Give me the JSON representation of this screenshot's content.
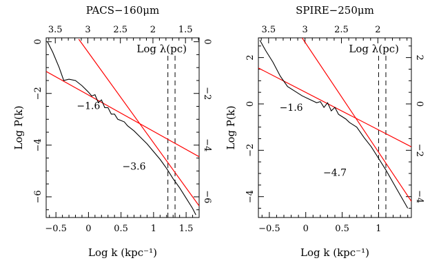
{
  "chart_data": [
    {
      "type": "line",
      "title": "PACS−160μm",
      "xlabel": "Log k (kpc⁻¹)",
      "ylabel": "Log P(k)",
      "top_label": "Log λ(pc)",
      "xlim": [
        -0.65,
        1.7
      ],
      "ylim": [
        -6.8,
        0.15
      ],
      "x_ticks": [
        -0.5,
        0,
        0.5,
        1,
        1.5
      ],
      "x_tick_labels": [
        "−0.5",
        "0",
        "0.5",
        "1",
        "1.5"
      ],
      "y_ticks": [
        0,
        -2,
        -4,
        -6
      ],
      "y_tick_labels": [
        "0",
        "−2",
        "−4",
        "−6"
      ],
      "top_ticks": [
        3.5,
        3,
        2.5,
        2,
        1.5
      ],
      "top_tick_labels": [
        "3.5",
        "3",
        "2.5",
        "2",
        "1.5"
      ],
      "top_axis_offset": 2.99,
      "grid": false,
      "series": [
        {
          "color": "#000000",
          "x": [
            -0.63,
            -0.55,
            -0.45,
            -0.38,
            -0.3,
            -0.2,
            -0.1,
            0.0,
            0.05,
            0.1,
            0.15,
            0.2,
            0.25,
            0.3,
            0.35,
            0.4,
            0.45,
            0.5,
            0.55,
            0.6,
            0.65,
            0.7,
            0.8,
            0.9,
            1.0,
            1.1,
            1.2,
            1.3,
            1.4,
            1.5,
            1.6,
            1.65
          ],
          "y": [
            0.0,
            -0.4,
            -1.0,
            -1.5,
            -1.45,
            -1.5,
            -1.7,
            -1.95,
            -2.1,
            -2.05,
            -2.35,
            -2.25,
            -2.55,
            -2.55,
            -2.8,
            -2.8,
            -3.0,
            -3.05,
            -3.1,
            -3.25,
            -3.35,
            -3.45,
            -3.7,
            -3.95,
            -4.25,
            -4.55,
            -4.9,
            -5.3,
            -5.65,
            -6.05,
            -6.45,
            -6.7
          ]
        }
      ],
      "fits": [
        {
          "slope": -1.6,
          "label": "−1.6",
          "color": "#ff0000",
          "x": [
            -0.65,
            1.7
          ],
          "y": [
            -1.15,
            -4.45
          ]
        },
        {
          "slope": -3.6,
          "label": "−3.6",
          "color": "#ff0000",
          "x": [
            -0.15,
            1.7
          ],
          "y": [
            0.1,
            -6.35
          ]
        }
      ],
      "vertical_lines": [
        1.22,
        1.33
      ],
      "slope_labels": [
        {
          "text": "−1.6",
          "x": 0.0,
          "y": -2.6
        },
        {
          "text": "−3.6",
          "x": 0.7,
          "y": -4.95
        }
      ]
    },
    {
      "type": "line",
      "title": "SPIRE−250μm",
      "xlabel": "Log k (kpc⁻¹)",
      "ylabel": "Log P(k)",
      "top_label": "Log λ(pc)",
      "xlim": [
        -0.65,
        1.45
      ],
      "ylim": [
        -4.9,
        2.85
      ],
      "x_ticks": [
        -0.5,
        0,
        0.5,
        1
      ],
      "x_tick_labels": [
        "−0.5",
        "0",
        "0.5",
        "1"
      ],
      "y_ticks": [
        2,
        0,
        -2,
        -4
      ],
      "y_tick_labels": [
        "2",
        "0",
        "−2",
        "−4"
      ],
      "top_ticks": [
        3.5,
        3,
        2.5,
        2
      ],
      "top_tick_labels": [
        "3.5",
        "3",
        "2.5",
        "2"
      ],
      "top_axis_offset": 2.99,
      "grid": false,
      "series": [
        {
          "color": "#000000",
          "x": [
            -0.63,
            -0.55,
            -0.45,
            -0.35,
            -0.25,
            -0.15,
            -0.05,
            0.05,
            0.15,
            0.2,
            0.25,
            0.3,
            0.35,
            0.4,
            0.45,
            0.5,
            0.55,
            0.6,
            0.65,
            0.7,
            0.8,
            0.9,
            1.0,
            1.1,
            1.2,
            1.3,
            1.4
          ],
          "y": [
            2.75,
            2.3,
            1.8,
            1.2,
            0.75,
            0.55,
            0.35,
            0.2,
            0.05,
            0.1,
            -0.15,
            0.05,
            -0.3,
            -0.15,
            -0.45,
            -0.55,
            -0.65,
            -0.8,
            -0.9,
            -1.0,
            -1.45,
            -1.85,
            -2.35,
            -2.85,
            -3.4,
            -3.95,
            -4.5
          ]
        }
      ],
      "fits": [
        {
          "slope": -1.6,
          "label": "−1.6",
          "color": "#ff0000",
          "x": [
            -0.65,
            1.45
          ],
          "y": [
            1.55,
            -1.85
          ]
        },
        {
          "slope": -4.7,
          "label": "−4.7",
          "color": "#ff0000",
          "x": [
            -0.05,
            1.45
          ],
          "y": [
            2.85,
            -4.2
          ]
        }
      ],
      "vertical_lines": [
        1.0,
        1.1
      ],
      "slope_labels": [
        {
          "text": "−1.6",
          "x": -0.2,
          "y": -0.3
        },
        {
          "text": "−4.7",
          "x": 0.4,
          "y": -3.1
        }
      ]
    }
  ]
}
